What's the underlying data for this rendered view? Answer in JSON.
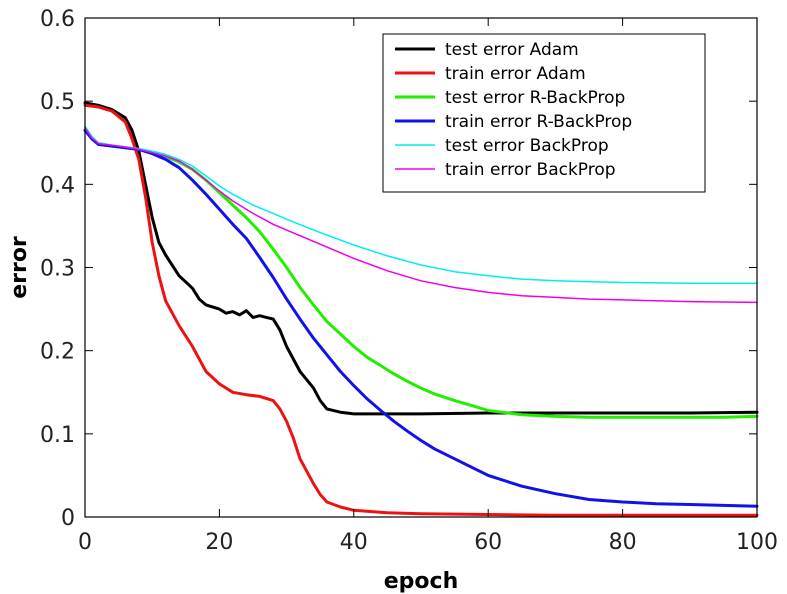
{
  "chart_data": {
    "type": "line",
    "title": "",
    "xlabel": "epoch",
    "ylabel": "error",
    "xlim": [
      0,
      100
    ],
    "ylim": [
      0,
      0.6
    ],
    "xticks": [
      "0",
      "20",
      "40",
      "60",
      "80",
      "100"
    ],
    "yticks": [
      "0",
      "0.1",
      "0.2",
      "0.3",
      "0.4",
      "0.5",
      "0.6"
    ],
    "xtick_values": [
      0,
      20,
      40,
      60,
      80,
      100
    ],
    "ytick_values": [
      0,
      0.1,
      0.2,
      0.3,
      0.4,
      0.5,
      0.6
    ],
    "grid": false,
    "legend_position": "top-right",
    "series": [
      {
        "name": "test error Adam",
        "color": "#000000",
        "width": "thick",
        "points": [
          [
            0,
            0.498
          ],
          [
            2,
            0.495
          ],
          [
            4,
            0.49
          ],
          [
            6,
            0.48
          ],
          [
            7,
            0.465
          ],
          [
            8,
            0.44
          ],
          [
            9,
            0.4
          ],
          [
            10,
            0.36
          ],
          [
            11,
            0.33
          ],
          [
            12,
            0.315
          ],
          [
            14,
            0.29
          ],
          [
            16,
            0.275
          ],
          [
            17,
            0.262
          ],
          [
            18,
            0.255
          ],
          [
            20,
            0.25
          ],
          [
            21,
            0.245
          ],
          [
            22,
            0.247
          ],
          [
            23,
            0.243
          ],
          [
            24,
            0.248
          ],
          [
            25,
            0.24
          ],
          [
            26,
            0.242
          ],
          [
            27,
            0.24
          ],
          [
            28,
            0.238
          ],
          [
            29,
            0.225
          ],
          [
            30,
            0.205
          ],
          [
            31,
            0.19
          ],
          [
            32,
            0.175
          ],
          [
            33,
            0.165
          ],
          [
            34,
            0.155
          ],
          [
            35,
            0.14
          ],
          [
            36,
            0.13
          ],
          [
            38,
            0.126
          ],
          [
            40,
            0.124
          ],
          [
            50,
            0.124
          ],
          [
            60,
            0.125
          ],
          [
            70,
            0.125
          ],
          [
            80,
            0.125
          ],
          [
            90,
            0.125
          ],
          [
            100,
            0.126
          ]
        ]
      },
      {
        "name": "train error Adam",
        "color": "#ee1111",
        "width": "thick",
        "points": [
          [
            0,
            0.495
          ],
          [
            2,
            0.493
          ],
          [
            4,
            0.488
          ],
          [
            6,
            0.475
          ],
          [
            7,
            0.455
          ],
          [
            8,
            0.43
          ],
          [
            9,
            0.385
          ],
          [
            10,
            0.33
          ],
          [
            11,
            0.29
          ],
          [
            12,
            0.26
          ],
          [
            14,
            0.23
          ],
          [
            16,
            0.205
          ],
          [
            17,
            0.19
          ],
          [
            18,
            0.175
          ],
          [
            20,
            0.16
          ],
          [
            22,
            0.15
          ],
          [
            24,
            0.147
          ],
          [
            26,
            0.145
          ],
          [
            28,
            0.14
          ],
          [
            29,
            0.13
          ],
          [
            30,
            0.115
          ],
          [
            31,
            0.095
          ],
          [
            32,
            0.07
          ],
          [
            33,
            0.055
          ],
          [
            34,
            0.04
          ],
          [
            35,
            0.027
          ],
          [
            36,
            0.018
          ],
          [
            38,
            0.012
          ],
          [
            40,
            0.008
          ],
          [
            45,
            0.005
          ],
          [
            50,
            0.004
          ],
          [
            60,
            0.003
          ],
          [
            70,
            0.002
          ],
          [
            80,
            0.002
          ],
          [
            90,
            0.002
          ],
          [
            100,
            0.002
          ]
        ]
      },
      {
        "name": "test error R-BackProp",
        "color": "#22ee00",
        "width": "thick",
        "points": [
          [
            0,
            0.465
          ],
          [
            1,
            0.455
          ],
          [
            2,
            0.448
          ],
          [
            5,
            0.445
          ],
          [
            8,
            0.442
          ],
          [
            10,
            0.438
          ],
          [
            12,
            0.433
          ],
          [
            14,
            0.427
          ],
          [
            16,
            0.418
          ],
          [
            18,
            0.405
          ],
          [
            20,
            0.39
          ],
          [
            22,
            0.375
          ],
          [
            24,
            0.36
          ],
          [
            26,
            0.343
          ],
          [
            28,
            0.322
          ],
          [
            30,
            0.3
          ],
          [
            32,
            0.276
          ],
          [
            34,
            0.255
          ],
          [
            36,
            0.235
          ],
          [
            38,
            0.22
          ],
          [
            40,
            0.205
          ],
          [
            42,
            0.192
          ],
          [
            44,
            0.182
          ],
          [
            46,
            0.172
          ],
          [
            48,
            0.163
          ],
          [
            50,
            0.155
          ],
          [
            52,
            0.148
          ],
          [
            55,
            0.14
          ],
          [
            58,
            0.133
          ],
          [
            60,
            0.128
          ],
          [
            65,
            0.123
          ],
          [
            70,
            0.121
          ],
          [
            75,
            0.12
          ],
          [
            80,
            0.12
          ],
          [
            85,
            0.12
          ],
          [
            90,
            0.12
          ],
          [
            95,
            0.12
          ],
          [
            100,
            0.121
          ]
        ]
      },
      {
        "name": "train error R-BackProp",
        "color": "#1111ee",
        "width": "thick",
        "points": [
          [
            0,
            0.465
          ],
          [
            1,
            0.455
          ],
          [
            2,
            0.448
          ],
          [
            5,
            0.445
          ],
          [
            8,
            0.442
          ],
          [
            10,
            0.437
          ],
          [
            12,
            0.43
          ],
          [
            14,
            0.42
          ],
          [
            16,
            0.405
          ],
          [
            18,
            0.388
          ],
          [
            20,
            0.37
          ],
          [
            22,
            0.352
          ],
          [
            24,
            0.335
          ],
          [
            26,
            0.312
          ],
          [
            28,
            0.288
          ],
          [
            30,
            0.262
          ],
          [
            32,
            0.238
          ],
          [
            34,
            0.215
          ],
          [
            36,
            0.195
          ],
          [
            38,
            0.175
          ],
          [
            40,
            0.158
          ],
          [
            42,
            0.142
          ],
          [
            44,
            0.128
          ],
          [
            46,
            0.115
          ],
          [
            48,
            0.103
          ],
          [
            50,
            0.092
          ],
          [
            52,
            0.082
          ],
          [
            55,
            0.07
          ],
          [
            58,
            0.058
          ],
          [
            60,
            0.05
          ],
          [
            65,
            0.037
          ],
          [
            70,
            0.028
          ],
          [
            75,
            0.021
          ],
          [
            80,
            0.018
          ],
          [
            85,
            0.016
          ],
          [
            90,
            0.015
          ],
          [
            95,
            0.014
          ],
          [
            100,
            0.013
          ]
        ]
      },
      {
        "name": "test error BackProp",
        "color": "#00eeee",
        "width": "thin",
        "points": [
          [
            0,
            0.47
          ],
          [
            1,
            0.458
          ],
          [
            2,
            0.45
          ],
          [
            5,
            0.446
          ],
          [
            8,
            0.443
          ],
          [
            10,
            0.44
          ],
          [
            12,
            0.436
          ],
          [
            14,
            0.43
          ],
          [
            16,
            0.422
          ],
          [
            18,
            0.41
          ],
          [
            20,
            0.398
          ],
          [
            22,
            0.388
          ],
          [
            25,
            0.375
          ],
          [
            28,
            0.365
          ],
          [
            30,
            0.358
          ],
          [
            35,
            0.342
          ],
          [
            40,
            0.327
          ],
          [
            45,
            0.314
          ],
          [
            50,
            0.303
          ],
          [
            55,
            0.295
          ],
          [
            60,
            0.29
          ],
          [
            65,
            0.286
          ],
          [
            70,
            0.284
          ],
          [
            75,
            0.283
          ],
          [
            80,
            0.282
          ],
          [
            90,
            0.281
          ],
          [
            100,
            0.281
          ]
        ]
      },
      {
        "name": "train error BackProp",
        "color": "#ee00ee",
        "width": "thin",
        "points": [
          [
            0,
            0.468
          ],
          [
            1,
            0.456
          ],
          [
            2,
            0.449
          ],
          [
            5,
            0.446
          ],
          [
            8,
            0.442
          ],
          [
            10,
            0.438
          ],
          [
            12,
            0.434
          ],
          [
            14,
            0.428
          ],
          [
            16,
            0.418
          ],
          [
            18,
            0.405
          ],
          [
            20,
            0.392
          ],
          [
            22,
            0.38
          ],
          [
            25,
            0.365
          ],
          [
            28,
            0.352
          ],
          [
            30,
            0.345
          ],
          [
            35,
            0.328
          ],
          [
            40,
            0.311
          ],
          [
            45,
            0.296
          ],
          [
            50,
            0.284
          ],
          [
            55,
            0.276
          ],
          [
            60,
            0.27
          ],
          [
            65,
            0.266
          ],
          [
            70,
            0.264
          ],
          [
            75,
            0.262
          ],
          [
            80,
            0.261
          ],
          [
            90,
            0.259
          ],
          [
            100,
            0.258
          ]
        ]
      }
    ]
  }
}
